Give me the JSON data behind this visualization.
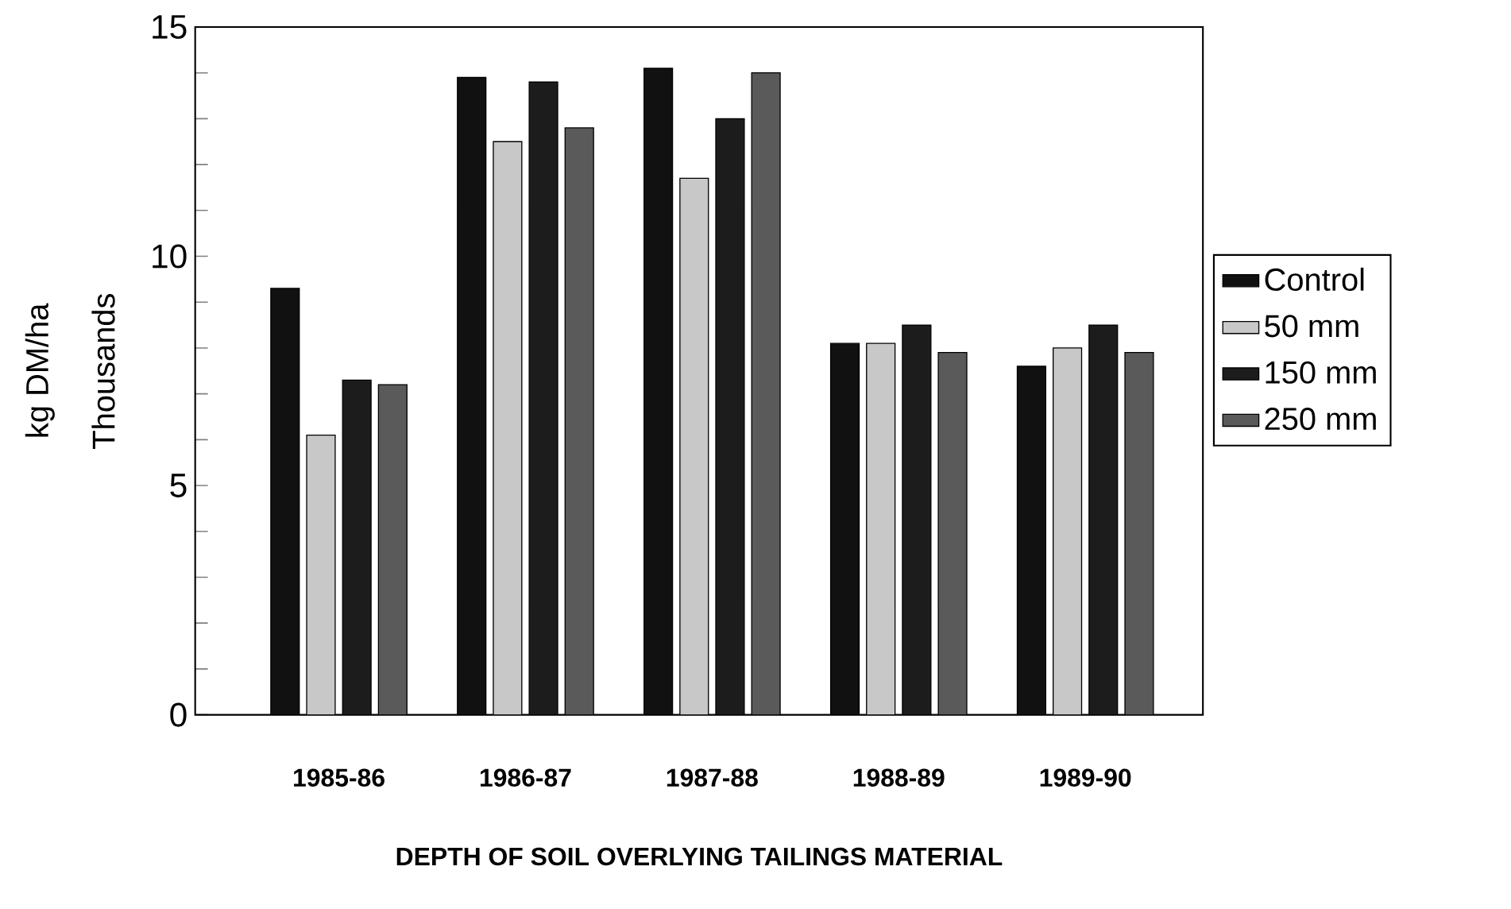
{
  "chart_data": {
    "type": "bar",
    "xlabel": "DEPTH OF SOIL OVERLYING TAILINGS MATERIAL",
    "ylabel": "kg DM/ha",
    "annotations": [
      "Thousands"
    ],
    "categories": [
      "1985-86",
      "1986-87",
      "1987-88",
      "1988-89",
      "1989-90"
    ],
    "series": [
      {
        "name": "Control",
        "color": "#111111",
        "values": [
          9.3,
          13.9,
          14.1,
          8.1,
          7.6
        ]
      },
      {
        "name": "50 mm",
        "color": "#c8c8c8",
        "values": [
          6.1,
          12.5,
          11.7,
          8.1,
          8.0
        ]
      },
      {
        "name": "150 mm",
        "color": "#1c1c1c",
        "values": [
          7.3,
          13.8,
          13.0,
          8.5,
          8.5
        ]
      },
      {
        "name": "250 mm",
        "color": "#5a5a5a",
        "values": [
          7.2,
          12.8,
          14.0,
          7.9,
          7.9
        ]
      }
    ],
    "ylim": [
      0,
      15
    ],
    "yticks": [
      0,
      {
        "value": 1,
        "label": null
      },
      {
        "value": 2,
        "label": null
      },
      {
        "value": 3,
        "label": null
      },
      {
        "value": 4,
        "label": null
      },
      5,
      {
        "value": 6,
        "label": null
      },
      {
        "value": 7,
        "label": null
      },
      {
        "value": 8,
        "label": null
      },
      {
        "value": 9,
        "label": null
      },
      10,
      {
        "value": 11,
        "label": null
      },
      {
        "value": 12,
        "label": null
      },
      {
        "value": 13,
        "label": null
      },
      {
        "value": 14,
        "label": null
      },
      15
    ],
    "grid": false,
    "legend": "right"
  }
}
